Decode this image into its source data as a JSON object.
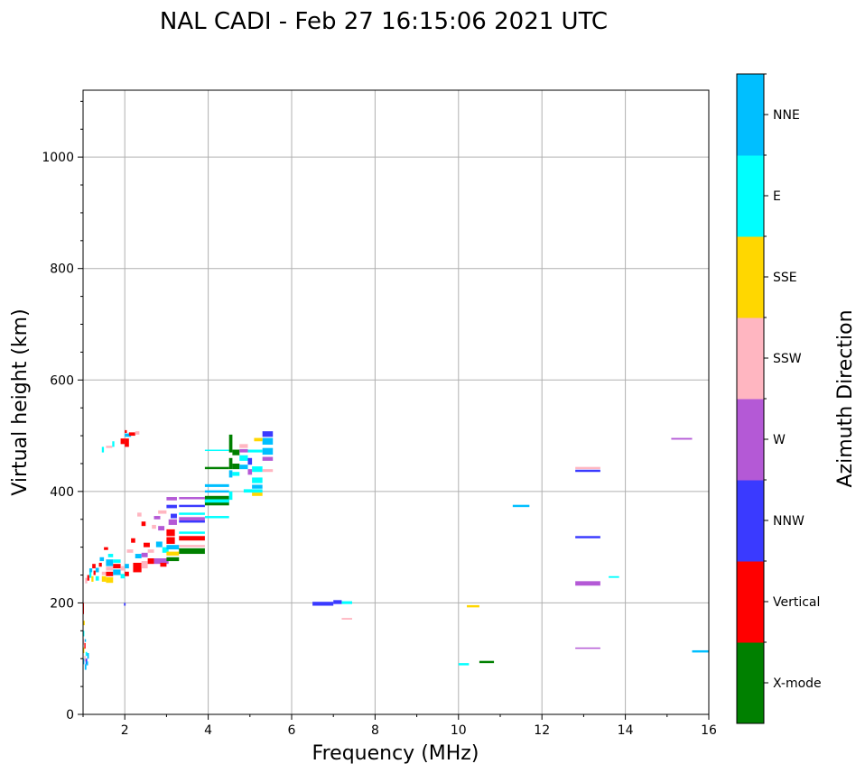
{
  "chart_data": {
    "type": "scatter",
    "title": "NAL CADI - Feb 27 16:15:06 2021 UTC",
    "xlabel": "Frequency (MHz)",
    "ylabel": "Virtual height (km)",
    "xlim": [
      1,
      16
    ],
    "ylim": [
      0,
      1120
    ],
    "xticks": [
      2,
      4,
      6,
      8,
      10,
      12,
      14,
      16
    ],
    "xtick_labels": [
      "2",
      "4",
      "6",
      "8",
      "10",
      "12",
      "14",
      "16"
    ],
    "yticks": [
      0,
      200,
      400,
      600,
      800,
      1000
    ],
    "ytick_labels": [
      "0",
      "200",
      "400",
      "600",
      "800",
      "1000"
    ],
    "grid": true,
    "colorbar": {
      "label": "Azimuth Direction",
      "categories": [
        "X-mode",
        "Vertical",
        "NNW",
        "W",
        "SSW",
        "SSE",
        "E",
        "NNE"
      ],
      "colors": [
        "#008000",
        "#ff0000",
        "#3a3aff",
        "#b459d6",
        "#ffb6c1",
        "#ffd700",
        "#00ffff",
        "#00bfff"
      ]
    },
    "point_format": "[freq_start_MHz, freq_end_MHz, height_low_km, height_high_km, direction_index]",
    "points": [
      [
        1.0,
        1.03,
        90,
        100,
        7
      ],
      [
        1.03,
        1.06,
        95,
        105,
        4
      ],
      [
        1.06,
        1.1,
        90,
        100,
        2
      ],
      [
        1.0,
        1.03,
        110,
        120,
        5
      ],
      [
        1.03,
        1.06,
        118,
        128,
        1
      ],
      [
        1.06,
        1.1,
        105,
        112,
        6
      ],
      [
        1.0,
        1.03,
        125,
        135,
        4
      ],
      [
        1.04,
        1.07,
        130,
        135,
        7
      ],
      [
        1.0,
        1.03,
        140,
        150,
        6
      ],
      [
        1.0,
        1.04,
        160,
        168,
        5
      ],
      [
        1.0,
        1.02,
        180,
        200,
        1
      ],
      [
        1.04,
        1.08,
        80,
        90,
        7
      ],
      [
        1.08,
        1.12,
        88,
        95,
        7
      ],
      [
        1.1,
        1.14,
        100,
        110,
        7
      ],
      [
        1.05,
        1.1,
        235,
        245,
        4
      ],
      [
        1.1,
        1.15,
        240,
        250,
        1
      ],
      [
        1.15,
        1.2,
        245,
        255,
        6
      ],
      [
        1.2,
        1.25,
        238,
        248,
        5
      ],
      [
        1.25,
        1.3,
        250,
        258,
        1
      ],
      [
        1.15,
        1.22,
        255,
        262,
        7
      ],
      [
        1.22,
        1.3,
        262,
        270,
        1
      ],
      [
        1.3,
        1.38,
        240,
        248,
        6
      ],
      [
        1.3,
        1.38,
        255,
        263,
        7
      ],
      [
        1.38,
        1.45,
        265,
        272,
        1
      ],
      [
        1.45,
        1.55,
        238,
        248,
        5
      ],
      [
        1.45,
        1.55,
        250,
        256,
        4
      ],
      [
        1.4,
        1.5,
        275,
        282,
        7
      ],
      [
        1.55,
        1.72,
        236,
        246,
        5
      ],
      [
        1.55,
        1.72,
        248,
        256,
        1
      ],
      [
        1.55,
        1.72,
        258,
        265,
        4
      ],
      [
        1.55,
        1.72,
        266,
        278,
        7
      ],
      [
        1.6,
        1.72,
        282,
        288,
        6
      ],
      [
        1.5,
        1.6,
        295,
        300,
        1
      ],
      [
        1.72,
        1.9,
        250,
        260,
        7
      ],
      [
        1.72,
        1.9,
        262,
        270,
        1
      ],
      [
        1.72,
        1.9,
        272,
        278,
        6
      ],
      [
        1.9,
        2.0,
        244,
        252,
        6
      ],
      [
        1.9,
        2.0,
        258,
        266,
        4
      ],
      [
        2.0,
        2.1,
        262,
        270,
        7
      ],
      [
        2.0,
        2.1,
        248,
        256,
        1
      ],
      [
        2.05,
        2.2,
        290,
        296,
        4
      ],
      [
        2.15,
        2.25,
        308,
        316,
        1
      ],
      [
        2.2,
        2.4,
        255,
        272,
        1
      ],
      [
        2.4,
        2.55,
        262,
        275,
        4
      ],
      [
        2.25,
        2.4,
        280,
        288,
        7
      ],
      [
        2.4,
        2.55,
        282,
        290,
        3
      ],
      [
        2.55,
        2.7,
        270,
        280,
        1
      ],
      [
        2.55,
        2.7,
        290,
        296,
        4
      ],
      [
        2.45,
        2.6,
        300,
        308,
        1
      ],
      [
        2.3,
        2.4,
        355,
        362,
        4
      ],
      [
        2.4,
        2.5,
        338,
        346,
        1
      ],
      [
        2.65,
        2.75,
        333,
        340,
        4
      ],
      [
        2.8,
        2.95,
        330,
        338,
        3
      ],
      [
        2.7,
        2.85,
        350,
        356,
        3
      ],
      [
        2.8,
        3.0,
        360,
        366,
        4
      ],
      [
        2.75,
        2.9,
        300,
        310,
        7
      ],
      [
        2.9,
        3.05,
        290,
        300,
        6
      ],
      [
        2.7,
        3.05,
        270,
        280,
        3
      ],
      [
        2.85,
        3.0,
        265,
        272,
        1
      ],
      [
        3.0,
        3.3,
        275,
        282,
        0
      ],
      [
        3.0,
        3.3,
        285,
        292,
        5
      ],
      [
        3.0,
        3.3,
        296,
        304,
        7
      ],
      [
        3.0,
        3.2,
        320,
        332,
        1
      ],
      [
        3.0,
        3.2,
        306,
        318,
        1
      ],
      [
        3.05,
        3.25,
        340,
        350,
        3
      ],
      [
        3.1,
        3.25,
        352,
        360,
        2
      ],
      [
        3.0,
        3.25,
        370,
        376,
        2
      ],
      [
        3.0,
        3.25,
        384,
        390,
        3
      ],
      [
        3.3,
        3.92,
        288,
        298,
        0
      ],
      [
        3.3,
        3.92,
        300,
        304,
        4
      ],
      [
        3.3,
        3.92,
        312,
        320,
        1
      ],
      [
        3.3,
        3.92,
        324,
        328,
        6
      ],
      [
        3.3,
        3.92,
        344,
        348,
        2
      ],
      [
        3.3,
        3.92,
        348,
        354,
        3
      ],
      [
        3.3,
        3.92,
        358,
        362,
        6
      ],
      [
        3.3,
        3.92,
        372,
        376,
        2
      ],
      [
        3.3,
        3.92,
        386,
        390,
        3
      ],
      [
        3.92,
        4.5,
        352,
        356,
        6
      ],
      [
        3.92,
        4.5,
        375,
        385,
        0
      ],
      [
        3.92,
        4.5,
        385,
        392,
        0
      ],
      [
        3.92,
        4.5,
        380,
        386,
        6
      ],
      [
        3.92,
        4.5,
        398,
        402,
        7
      ],
      [
        3.92,
        4.5,
        408,
        413,
        7
      ],
      [
        3.92,
        4.5,
        440,
        444,
        0
      ],
      [
        3.92,
        4.5,
        473,
        475,
        6
      ],
      [
        4.5,
        4.58,
        470,
        502,
        0
      ],
      [
        4.5,
        4.58,
        440,
        460,
        0
      ],
      [
        4.5,
        4.58,
        425,
        438,
        7
      ],
      [
        4.5,
        4.58,
        385,
        400,
        6
      ],
      [
        4.58,
        4.75,
        465,
        475,
        0
      ],
      [
        4.58,
        4.75,
        440,
        450,
        0
      ],
      [
        4.58,
        4.75,
        428,
        435,
        6
      ],
      [
        4.75,
        4.95,
        478,
        485,
        4
      ],
      [
        4.75,
        4.95,
        470,
        476,
        3
      ],
      [
        4.75,
        4.95,
        455,
        465,
        6
      ],
      [
        4.75,
        4.95,
        440,
        448,
        7
      ],
      [
        4.95,
        5.05,
        448,
        460,
        2
      ],
      [
        4.95,
        5.05,
        430,
        440,
        3
      ],
      [
        4.95,
        5.3,
        470,
        475,
        6
      ],
      [
        5.05,
        5.3,
        435,
        445,
        6
      ],
      [
        5.05,
        5.3,
        415,
        425,
        6
      ],
      [
        5.05,
        5.3,
        405,
        412,
        7
      ],
      [
        5.05,
        5.3,
        392,
        398,
        5
      ],
      [
        5.3,
        5.55,
        498,
        508,
        2
      ],
      [
        5.3,
        5.55,
        484,
        496,
        7
      ],
      [
        5.3,
        5.55,
        466,
        478,
        7
      ],
      [
        5.3,
        5.55,
        455,
        462,
        3
      ],
      [
        5.3,
        5.55,
        435,
        440,
        4
      ],
      [
        4.85,
        5.3,
        398,
        404,
        6
      ],
      [
        5.1,
        5.3,
        490,
        496,
        5
      ],
      [
        1.55,
        1.7,
        478,
        482,
        4
      ],
      [
        1.7,
        1.75,
        480,
        490,
        6
      ],
      [
        1.9,
        2.0,
        485,
        495,
        1
      ],
      [
        2.0,
        2.1,
        480,
        495,
        1
      ],
      [
        2.0,
        2.15,
        498,
        504,
        7
      ],
      [
        2.1,
        2.25,
        500,
        506,
        1
      ],
      [
        2.25,
        2.35,
        502,
        508,
        4
      ],
      [
        2.0,
        2.05,
        505,
        510,
        1
      ],
      [
        1.45,
        1.5,
        470,
        480,
        6
      ],
      [
        6.5,
        7.0,
        195,
        202,
        2
      ],
      [
        7.0,
        7.2,
        198,
        205,
        2
      ],
      [
        7.2,
        7.45,
        198,
        203,
        6
      ],
      [
        7.2,
        7.45,
        170,
        173,
        4
      ],
      [
        10.2,
        10.5,
        192,
        196,
        5
      ],
      [
        10.0,
        10.25,
        88,
        92,
        6
      ],
      [
        10.5,
        10.85,
        92,
        96,
        0
      ],
      [
        11.3,
        11.7,
        372,
        376,
        7
      ],
      [
        12.8,
        13.4,
        440,
        444,
        4
      ],
      [
        12.8,
        13.4,
        435,
        439,
        2
      ],
      [
        12.8,
        13.4,
        316,
        320,
        2
      ],
      [
        12.8,
        13.4,
        231,
        239,
        3
      ],
      [
        12.8,
        13.4,
        118,
        120,
        3
      ],
      [
        13.6,
        13.85,
        245,
        248,
        6
      ],
      [
        15.1,
        15.6,
        493,
        496,
        3
      ],
      [
        15.6,
        16.0,
        111,
        115,
        7
      ],
      [
        1.98,
        2.02,
        195,
        200,
        2
      ]
    ]
  }
}
